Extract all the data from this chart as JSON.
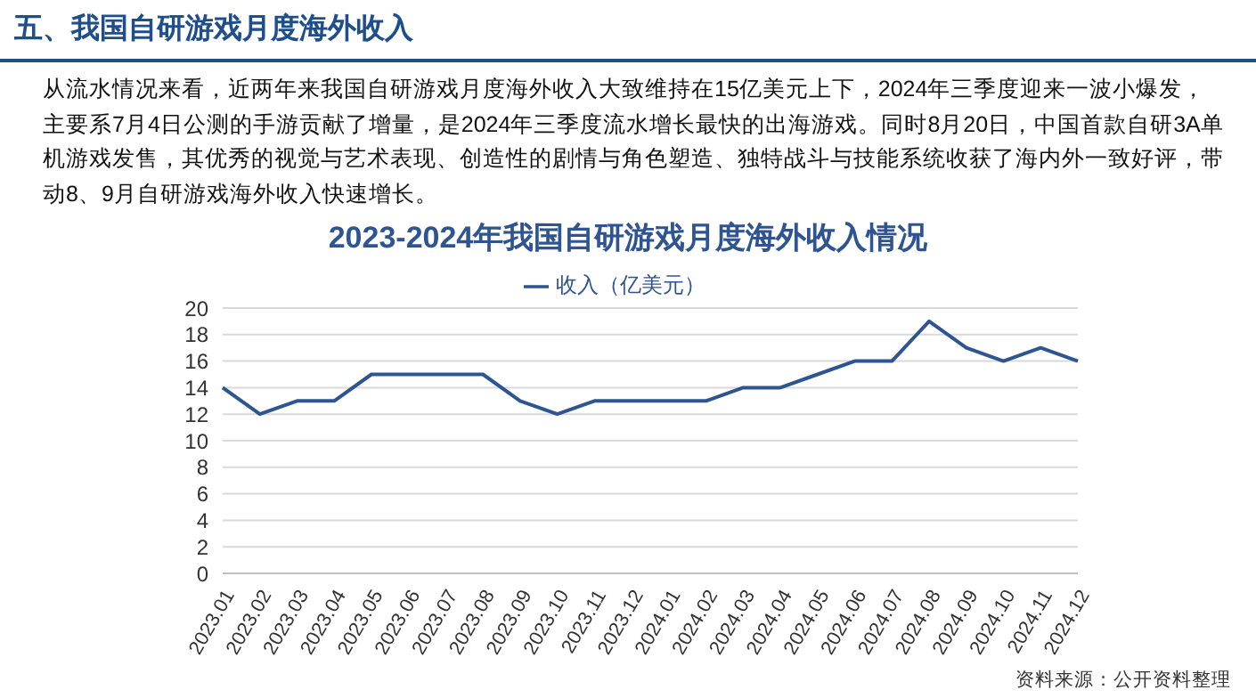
{
  "chart_data": {
    "type": "line",
    "title": "2023-2024年我国自研游戏月度海外收入情况",
    "annotations": [
      "五、我国自研游戏月度海外收入",
      "从流水情况来看，近两年来我国自研游戏月度海外收入大致维持在15亿美元上下，2024年三季度迎来一波小爆发，主要系7月4日公测的手游贡献了增量，是2024年三季度流水增长最快的出海游戏。同时8月20日，中国首款自研3A单机游戏发售，其优秀的视觉与艺术表现、创造性的剧情与角色塑造、独特战斗与技能系统收获了海内外一致好评，带动8、9月自研游戏海外收入快速增长。",
      "资料来源：公开资料整理"
    ],
    "categories": [
      "2023.01",
      "2023.02",
      "2023.03",
      "2023.04",
      "2023.05",
      "2023.06",
      "2023.07",
      "2023.08",
      "2023.09",
      "2023.10",
      "2023.11",
      "2023.12",
      "2024.01",
      "2024.02",
      "2024.03",
      "2024.04",
      "2024.05",
      "2024.06",
      "2024.07",
      "2024.08",
      "2024.09",
      "2024.10",
      "2024.11",
      "2024.12"
    ],
    "series": [
      {
        "name": "收入（亿美元）",
        "color": "#2e5591",
        "values": [
          14,
          12,
          13,
          13,
          15,
          15,
          15,
          15,
          13,
          12,
          13,
          13,
          13,
          13,
          14,
          14,
          15,
          16,
          16,
          19,
          17,
          16,
          17,
          16
        ]
      }
    ],
    "ylim": [
      0,
      20
    ],
    "yticks": [
      0,
      2,
      4,
      6,
      8,
      10,
      12,
      14,
      16,
      18,
      20
    ],
    "grid": "y",
    "legend": "top",
    "marker": "none",
    "line_style": "solid"
  }
}
